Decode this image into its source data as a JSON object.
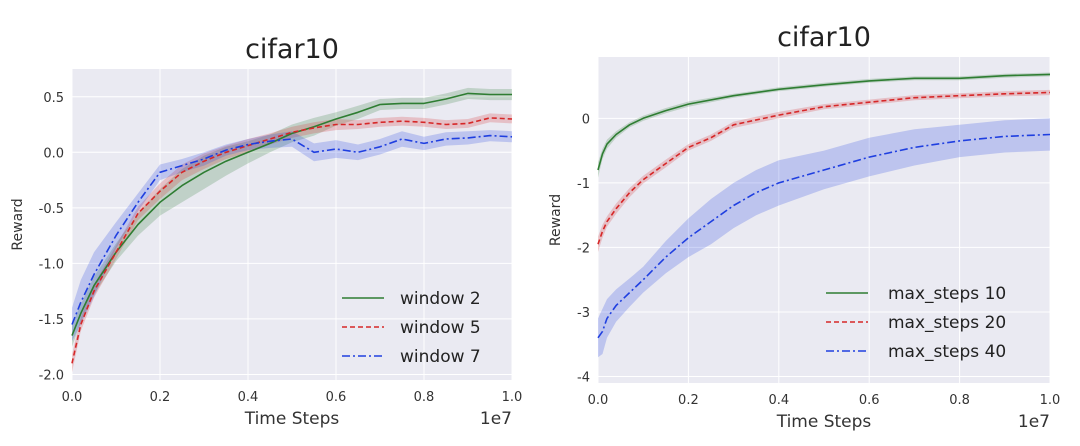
{
  "chart_data": [
    {
      "type": "line",
      "title": "cifar10",
      "xlabel": "Time Steps",
      "ylabel": "Reward",
      "x_scale_label": "1e7",
      "xlim": [
        0,
        1.0
      ],
      "ylim": [
        -2.05,
        0.75
      ],
      "xticks": [
        0.0,
        0.2,
        0.4,
        0.6,
        0.8,
        1.0
      ],
      "xtick_labels": [
        "0.0",
        "0.2",
        "0.4",
        "0.6",
        "0.8",
        "1.0"
      ],
      "yticks": [
        -2.0,
        -1.5,
        -1.0,
        -0.5,
        0.0,
        0.5
      ],
      "ytick_labels": [
        "-2.0",
        "-1.5",
        "-1.0",
        "-0.5",
        "0.0",
        "0.5"
      ],
      "grid": true,
      "legend_position": "lower-right",
      "series": [
        {
          "name": "window 2",
          "color": "#2e7d32",
          "dash": "solid",
          "x": [
            0,
            0.02,
            0.05,
            0.1,
            0.15,
            0.2,
            0.25,
            0.3,
            0.35,
            0.4,
            0.45,
            0.5,
            0.55,
            0.6,
            0.65,
            0.7,
            0.75,
            0.8,
            0.85,
            0.9,
            0.95,
            1.0
          ],
          "y": [
            -1.65,
            -1.45,
            -1.2,
            -0.9,
            -0.65,
            -0.45,
            -0.3,
            -0.18,
            -0.08,
            0.0,
            0.08,
            0.17,
            0.23,
            0.3,
            0.36,
            0.43,
            0.44,
            0.44,
            0.48,
            0.53,
            0.52,
            0.52
          ],
          "band": [
            0.1,
            0.08,
            0.08,
            0.08,
            0.1,
            0.12,
            0.15,
            0.15,
            0.13,
            0.1,
            0.08,
            0.08,
            0.08,
            0.06,
            0.06,
            0.05,
            0.05,
            0.05,
            0.05,
            0.05,
            0.05,
            0.05
          ]
        },
        {
          "name": "window 5",
          "color": "#d62728",
          "dash": "dashed",
          "x": [
            0,
            0.02,
            0.05,
            0.1,
            0.15,
            0.2,
            0.25,
            0.3,
            0.35,
            0.4,
            0.45,
            0.5,
            0.55,
            0.6,
            0.65,
            0.7,
            0.75,
            0.8,
            0.85,
            0.9,
            0.95,
            1.0
          ],
          "y": [
            -1.9,
            -1.55,
            -1.25,
            -0.9,
            -0.55,
            -0.35,
            -0.18,
            -0.08,
            0.0,
            0.06,
            0.12,
            0.18,
            0.22,
            0.25,
            0.25,
            0.27,
            0.28,
            0.27,
            0.25,
            0.26,
            0.31,
            0.3
          ],
          "band": [
            0.08,
            0.06,
            0.06,
            0.06,
            0.06,
            0.07,
            0.07,
            0.07,
            0.06,
            0.06,
            0.05,
            0.05,
            0.05,
            0.05,
            0.04,
            0.04,
            0.04,
            0.04,
            0.04,
            0.04,
            0.04,
            0.04
          ]
        },
        {
          "name": "window 7",
          "color": "#1f3fe0",
          "dash": "dashdot",
          "x": [
            0,
            0.02,
            0.05,
            0.1,
            0.15,
            0.2,
            0.25,
            0.3,
            0.35,
            0.4,
            0.45,
            0.5,
            0.55,
            0.6,
            0.65,
            0.7,
            0.75,
            0.8,
            0.85,
            0.9,
            0.95,
            1.0
          ],
          "y": [
            -1.55,
            -1.35,
            -1.1,
            -0.75,
            -0.45,
            -0.18,
            -0.12,
            -0.06,
            0.02,
            0.07,
            0.1,
            0.12,
            0.0,
            0.03,
            0.0,
            0.05,
            0.12,
            0.08,
            0.12,
            0.13,
            0.15,
            0.14
          ],
          "band": [
            0.15,
            0.2,
            0.2,
            0.12,
            0.08,
            0.07,
            0.06,
            0.06,
            0.05,
            0.05,
            0.06,
            0.07,
            0.08,
            0.08,
            0.07,
            0.07,
            0.07,
            0.06,
            0.06,
            0.06,
            0.05,
            0.05
          ]
        }
      ]
    },
    {
      "type": "line",
      "title": "cifar10",
      "xlabel": "Time Steps",
      "ylabel": "Reward",
      "x_scale_label": "1e7",
      "xlim": [
        0,
        1.0
      ],
      "ylim": [
        -4.1,
        0.95
      ],
      "xticks": [
        0.0,
        0.2,
        0.4,
        0.6,
        0.8,
        1.0
      ],
      "xtick_labels": [
        "0.0",
        "0.2",
        "0.4",
        "0.6",
        "0.8",
        "1.0"
      ],
      "yticks": [
        -4,
        -3,
        -2,
        -1,
        0
      ],
      "ytick_labels": [
        "-4",
        "-3",
        "-2",
        "-1",
        "0"
      ],
      "grid": true,
      "legend_position": "lower-right",
      "series": [
        {
          "name": "max_steps 10",
          "color": "#2e7d32",
          "dash": "solid",
          "x": [
            0,
            0.01,
            0.02,
            0.04,
            0.07,
            0.1,
            0.15,
            0.2,
            0.3,
            0.4,
            0.5,
            0.6,
            0.7,
            0.8,
            0.9,
            1.0
          ],
          "y": [
            -0.8,
            -0.55,
            -0.4,
            -0.25,
            -0.1,
            0.0,
            0.12,
            0.22,
            0.35,
            0.45,
            0.52,
            0.58,
            0.62,
            0.62,
            0.66,
            0.68
          ],
          "band": [
            0.12,
            0.08,
            0.07,
            0.05,
            0.04,
            0.04,
            0.04,
            0.04,
            0.03,
            0.03,
            0.03,
            0.03,
            0.03,
            0.03,
            0.03,
            0.03
          ]
        },
        {
          "name": "max_steps 20",
          "color": "#d62728",
          "dash": "dashed",
          "x": [
            0,
            0.01,
            0.02,
            0.04,
            0.07,
            0.1,
            0.15,
            0.2,
            0.25,
            0.3,
            0.4,
            0.5,
            0.6,
            0.7,
            0.8,
            0.9,
            1.0
          ],
          "y": [
            -1.95,
            -1.75,
            -1.6,
            -1.4,
            -1.15,
            -0.95,
            -0.7,
            -0.45,
            -0.3,
            -0.1,
            0.05,
            0.18,
            0.25,
            0.32,
            0.35,
            0.38,
            0.4
          ],
          "band": [
            0.12,
            0.1,
            0.08,
            0.08,
            0.07,
            0.06,
            0.06,
            0.05,
            0.05,
            0.05,
            0.05,
            0.04,
            0.04,
            0.04,
            0.04,
            0.04,
            0.04
          ]
        },
        {
          "name": "max_steps 40",
          "color": "#1f3fe0",
          "dash": "dashdot",
          "x": [
            0,
            0.01,
            0.02,
            0.04,
            0.07,
            0.1,
            0.15,
            0.2,
            0.25,
            0.3,
            0.35,
            0.4,
            0.5,
            0.6,
            0.7,
            0.8,
            0.9,
            1.0
          ],
          "y": [
            -3.4,
            -3.3,
            -3.1,
            -2.9,
            -2.7,
            -2.5,
            -2.15,
            -1.85,
            -1.6,
            -1.35,
            -1.15,
            -1.0,
            -0.8,
            -0.6,
            -0.45,
            -0.35,
            -0.28,
            -0.25
          ],
          "band": [
            0.3,
            0.35,
            0.3,
            0.25,
            0.22,
            0.2,
            0.25,
            0.3,
            0.35,
            0.35,
            0.35,
            0.35,
            0.3,
            0.3,
            0.28,
            0.25,
            0.25,
            0.25
          ]
        }
      ]
    }
  ]
}
